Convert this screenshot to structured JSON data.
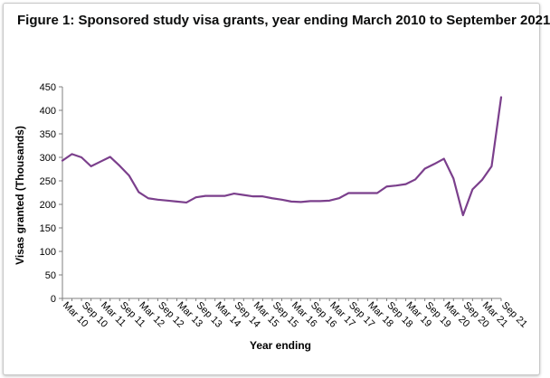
{
  "chart_data": {
    "type": "line",
    "title": "Figure 1: Sponsored study visa grants, year ending March 2010 to September 2021",
    "xlabel": "Year ending",
    "ylabel": "Visas granted (Thousands)",
    "ylim": [
      0,
      450
    ],
    "yticks": [
      0,
      50,
      100,
      150,
      200,
      250,
      300,
      350,
      400,
      450
    ],
    "grid": false,
    "legend": "none",
    "line_color": "#7b3f8c",
    "x": [
      "Mar 10",
      "Jun 10",
      "Sep 10",
      "Dec 10",
      "Mar 11",
      "Jun 11",
      "Sep 11",
      "Dec 11",
      "Mar 12",
      "Jun 12",
      "Sep 12",
      "Dec 12",
      "Mar 13",
      "Jun 13",
      "Sep 13",
      "Dec 13",
      "Mar 14",
      "Jun 14",
      "Sep 14",
      "Dec 14",
      "Mar 15",
      "Jun 15",
      "Sep 15",
      "Dec 15",
      "Mar 16",
      "Jun 16",
      "Sep 16",
      "Dec 16",
      "Mar 17",
      "Jun 17",
      "Sep 17",
      "Dec 17",
      "Mar 18",
      "Jun 18",
      "Sep 18",
      "Dec 18",
      "Mar 19",
      "Jun 19",
      "Sep 19",
      "Dec 19",
      "Mar 20",
      "Jun 20",
      "Sep 20",
      "Dec 20",
      "Mar 21",
      "Jun 21",
      "Sep 21"
    ],
    "xtick_labels": [
      "Mar 10",
      "Sep 10",
      "Mar 11",
      "Sep 11",
      "Mar 12",
      "Sep 12",
      "Mar 13",
      "Sep 13",
      "Mar 14",
      "Sep 14",
      "Mar 15",
      "Sep 15",
      "Mar 16",
      "Sep 16",
      "Mar 17",
      "Sep 17",
      "Mar 18",
      "Sep 18",
      "Mar 19",
      "Sep 19",
      "Mar 20",
      "Sep 20",
      "Mar 21",
      "Sep 21"
    ],
    "series": [
      {
        "name": "",
        "values": [
          293,
          307,
          300,
          281,
          291,
          301,
          282,
          261,
          226,
          213,
          210,
          208,
          206,
          204,
          215,
          218,
          218,
          218,
          223,
          220,
          217,
          217,
          213,
          210,
          206,
          205,
          207,
          207,
          208,
          213,
          224,
          224,
          224,
          224,
          238,
          240,
          243,
          253,
          276,
          286,
          297,
          255,
          177,
          232,
          252,
          281,
          428
        ]
      }
    ]
  }
}
